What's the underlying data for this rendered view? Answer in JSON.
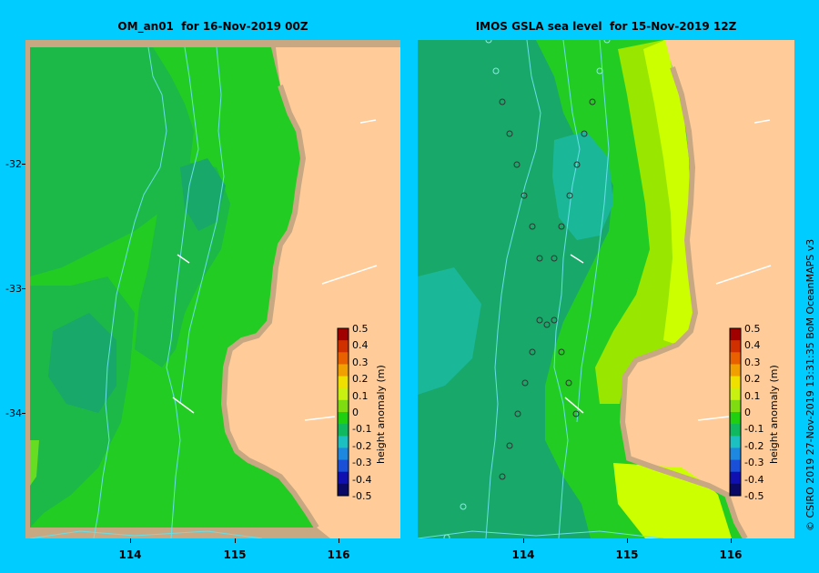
{
  "titles": {
    "left": "OM_an01  for 16-Nov-2019 00Z",
    "right": "IMOS GSLA sea level  for 15-Nov-2019 12Z"
  },
  "y_axis_labels": [
    "-32",
    "-33",
    "-34"
  ],
  "x_axis_labels": [
    "114",
    "115",
    "116"
  ],
  "colorbar": {
    "title": "height anomaly (m)",
    "ticks": [
      "0.5",
      "0.4",
      "0.3",
      "0.2",
      "0.1",
      "0",
      "-0.1",
      "-0.2",
      "-0.3",
      "-0.4",
      "-0.5"
    ],
    "colors": [
      "#0a0a66",
      "#1010b0",
      "#1a4fd8",
      "#1e88e0",
      "#1cc0c0",
      "#10b860",
      "#20d010",
      "#7fdc10",
      "#c8f010",
      "#f0e000",
      "#f0a000",
      "#e86000",
      "#d03000",
      "#a00000"
    ]
  },
  "credit": "© CSIRO 2019   27-Nov-2019 13:31:35 BoM OceanMAPS v3",
  "colors": {
    "background": "#00ccff",
    "land": "#ffcc99",
    "shelf": "#c8a882",
    "contour": "#66e0e8"
  },
  "map_extent": {
    "lon": [
      113.0,
      116.6
    ],
    "lat": [
      -35.0,
      -31.0
    ]
  }
}
